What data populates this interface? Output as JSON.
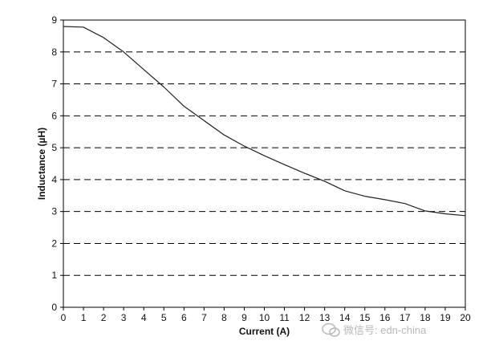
{
  "chart_data": {
    "type": "line",
    "title": "",
    "xlabel": "Current (A)",
    "ylabel": "Inductance (µH)",
    "xlim": [
      0,
      20
    ],
    "ylim": [
      0,
      9
    ],
    "x_ticks": [
      0,
      1,
      2,
      3,
      4,
      5,
      6,
      7,
      8,
      9,
      10,
      11,
      12,
      13,
      14,
      15,
      16,
      17,
      18,
      19,
      20
    ],
    "y_ticks": [
      0,
      1,
      2,
      3,
      4,
      5,
      6,
      7,
      8,
      9
    ],
    "grid": {
      "x": false,
      "y": true,
      "style": "dashed"
    },
    "legend": "none",
    "series": [
      {
        "color": "#222222",
        "x": [
          0,
          1,
          2,
          3,
          4,
          5,
          6,
          7,
          8,
          9,
          10,
          11,
          12,
          13,
          14,
          15,
          16,
          17,
          18,
          19,
          20
        ],
        "y": [
          8.8,
          8.78,
          8.45,
          8.0,
          7.45,
          6.9,
          6.3,
          5.85,
          5.4,
          5.05,
          4.75,
          4.47,
          4.2,
          3.95,
          3.65,
          3.48,
          3.37,
          3.25,
          3.02,
          2.93,
          2.87
        ]
      }
    ]
  },
  "watermark": {
    "text": "微信号: edn-china",
    "icon": "wechat-icon",
    "color": "#b8b8b8"
  }
}
